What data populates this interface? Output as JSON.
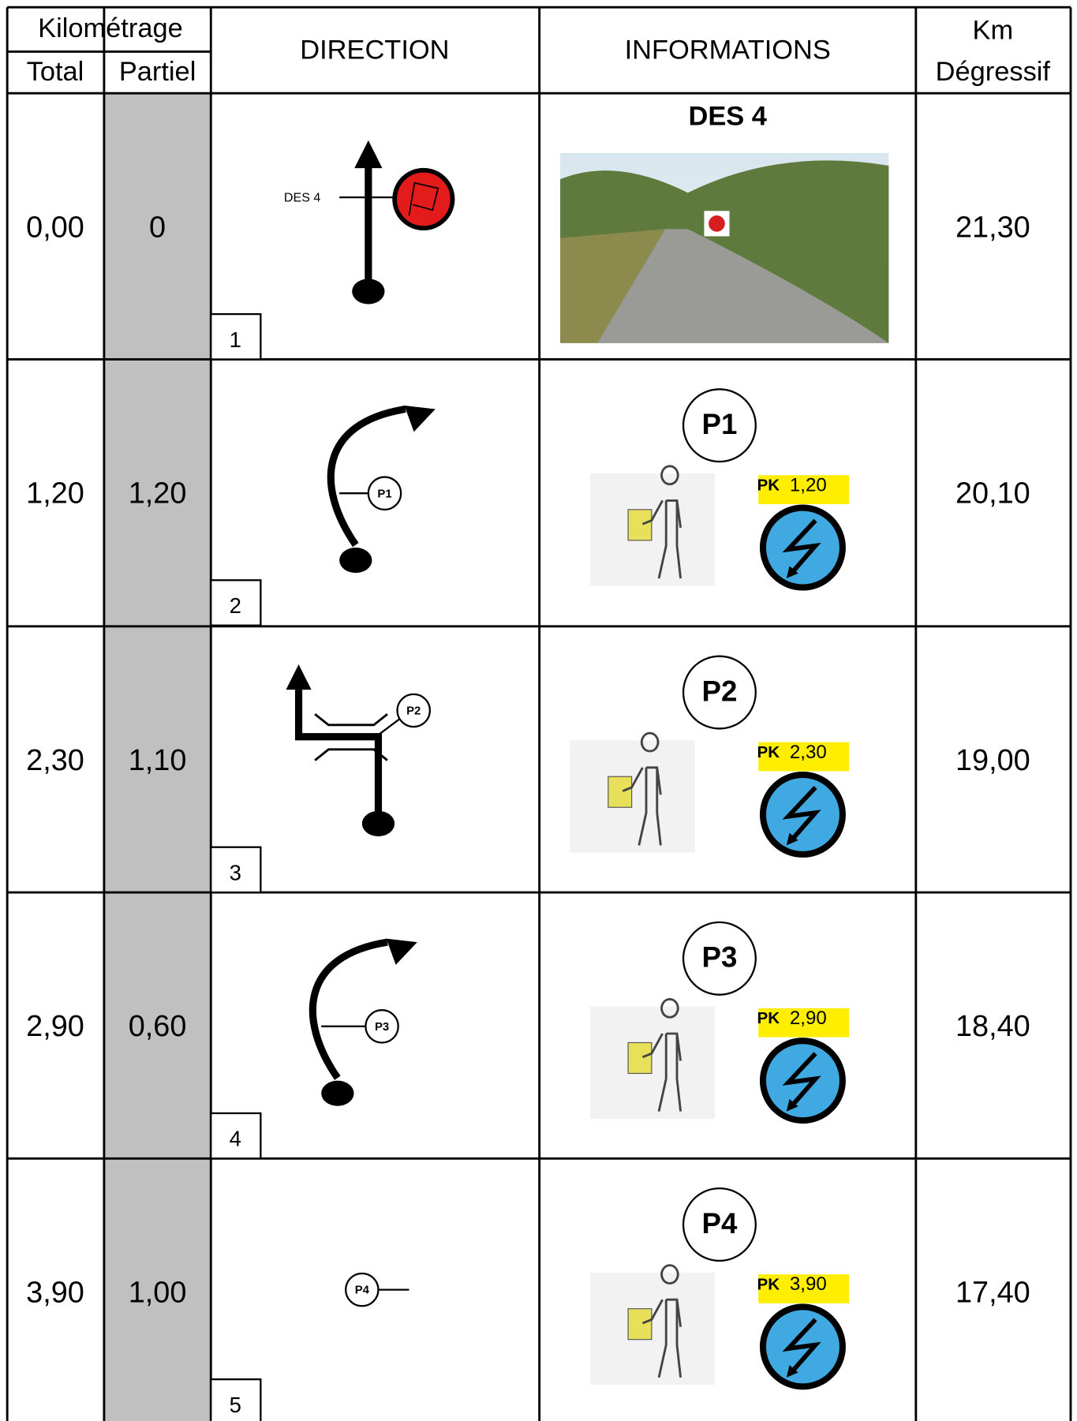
{
  "header": {
    "kilometrage": "Kilométrage",
    "total": "Total",
    "partiel": "Partiel",
    "direction": "DIRECTION",
    "informations": "INFORMATIONS",
    "km_degressif": [
      "Km",
      "Dégressif"
    ]
  },
  "rows": [
    {
      "total": "0,00",
      "partiel": "0",
      "step": "1",
      "direction_label": "DES 4",
      "info_title": "DES 4",
      "km_degressif": "21,30"
    },
    {
      "total": "1,20",
      "partiel": "1,20",
      "step": "2",
      "direction_label": "P1",
      "info_title": "P1",
      "pk": {
        "label": "PK",
        "value": "1,20"
      },
      "km_degressif": "20,10"
    },
    {
      "total": "2,30",
      "partiel": "1,10",
      "step": "3",
      "direction_label": "P2",
      "info_title": "P2",
      "pk": {
        "label": "PK",
        "value": "2,30"
      },
      "km_degressif": "19,00"
    },
    {
      "total": "2,90",
      "partiel": "0,60",
      "step": "4",
      "direction_label": "P3",
      "info_title": "P3",
      "pk": {
        "label": "PK",
        "value": "2,90"
      },
      "km_degressif": "18,40"
    },
    {
      "total": "3,90",
      "partiel": "1,00",
      "step": "5",
      "direction_label": "P4",
      "info_title": "P4",
      "pk": {
        "label": "PK",
        "value": "3,90"
      },
      "km_degressif": "17,40"
    }
  ]
}
